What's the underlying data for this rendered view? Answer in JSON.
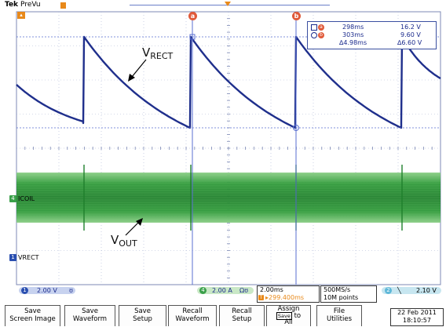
{
  "header": {
    "brand": "Tek",
    "mode": "PreVu"
  },
  "markers": {
    "cursor_a_label": "a",
    "cursor_b_label": "b",
    "ch1_label": "VRECT",
    "ch1_tag": "1",
    "ch4_label": "ICOIL",
    "ch4_tag": "4"
  },
  "readout": {
    "a_badge": "a",
    "b_badge": "b",
    "a_time": "298ms",
    "a_value": "16.2 V",
    "b_time": "303ms",
    "b_value": "9.60 V",
    "delta_time": "∆4.98ms",
    "delta_value": "∆6.60 V"
  },
  "annotations": {
    "vrect_main": "V",
    "vrect_sub": "RECT",
    "vout_main": "V",
    "vout_sub": "OUT"
  },
  "status": {
    "ch1_num": "1",
    "ch1_scale": "2.00 V",
    "ch1_bw": "ʊ",
    "ch4_num": "4",
    "ch4_scale": "2.00 A",
    "ch4_term": "Ωʊ",
    "timebase": "2.00ms",
    "trigger_pos": "▸299.400ms",
    "trigger_pos_tag": "T",
    "sample_rate": "500MS/s",
    "record_length": "10M points",
    "trig_ch": "2",
    "trig_slope": "╲",
    "trig_level": "2.10 V"
  },
  "menu": {
    "items": [
      {
        "line1": "Save",
        "line2": "Screen Image"
      },
      {
        "line1": "Save",
        "line2": "Waveform"
      },
      {
        "line1": "Save",
        "line2": "Setup"
      },
      {
        "line1": "Recall",
        "line2": "Waveform"
      },
      {
        "line1": "Recall",
        "line2": "Setup"
      },
      {
        "line1": "Assign",
        "line2_tag": "Save",
        "line2": "to",
        "line3": "All"
      },
      {
        "line1": "File",
        "line2": "Utilities"
      }
    ],
    "date": "22 Feb 2011",
    "time": "18:10:57"
  },
  "colors": {
    "vrect_trace": "#1f2f8c",
    "icoil_band": "#2d9a3c",
    "cursor": "#5a6fd0",
    "grid": "#9aa6c8",
    "badge": "#e05a3a",
    "ch4_tag": "#3aa04a",
    "ch1_tag": "#2a4fb0"
  }
}
